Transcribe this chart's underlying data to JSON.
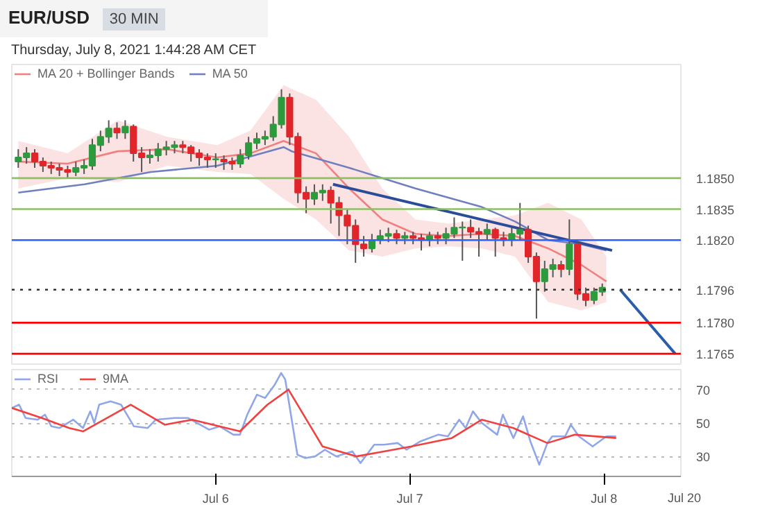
{
  "chart_data": [
    {
      "type": "candlestick",
      "title": "EUR/USD",
      "subtitle": "30 MIN",
      "annotations": [
        "Thursday, July 8, 2021 1:44:28 AM CET"
      ],
      "x": [
        "2021-07-04T23:36",
        "2021-07-05T00:37",
        "2021-07-05T01:38",
        "2021-07-05T02:39",
        "2021-07-05T03:40",
        "2021-07-05T04:41",
        "2021-07-05T05:42",
        "2021-07-05T06:43",
        "2021-07-05T07:44",
        "2021-07-05T08:45",
        "2021-07-05T09:46",
        "2021-07-05T10:47",
        "2021-07-05T11:48",
        "2021-07-05T12:49",
        "2021-07-05T13:50",
        "2021-07-05T14:51",
        "2021-07-05T15:52",
        "2021-07-05T16:53",
        "2021-07-05T17:54",
        "2021-07-05T18:55",
        "2021-07-05T19:56",
        "2021-07-05T20:57",
        "2021-07-05T21:58",
        "2021-07-05T22:59",
        "2021-07-06T00:00",
        "2021-07-06T01:01",
        "2021-07-06T02:02",
        "2021-07-06T03:03",
        "2021-07-06T04:04",
        "2021-07-06T05:05",
        "2021-07-06T06:06",
        "2021-07-06T07:07",
        "2021-07-06T08:08",
        "2021-07-06T09:09",
        "2021-07-06T10:10",
        "2021-07-06T11:11",
        "2021-07-06T12:12",
        "2021-07-06T13:13",
        "2021-07-06T14:14",
        "2021-07-06T15:15",
        "2021-07-06T16:16",
        "2021-07-06T17:17",
        "2021-07-06T18:18",
        "2021-07-06T19:19",
        "2021-07-06T20:20",
        "2021-07-06T21:21",
        "2021-07-06T22:22",
        "2021-07-06T23:23",
        "2021-07-07T00:24",
        "2021-07-07T01:25",
        "2021-07-07T02:26",
        "2021-07-07T03:27",
        "2021-07-07T04:28",
        "2021-07-07T05:29",
        "2021-07-07T06:30",
        "2021-07-07T07:31",
        "2021-07-07T08:32",
        "2021-07-07T09:33",
        "2021-07-07T10:34",
        "2021-07-07T11:35",
        "2021-07-07T12:36",
        "2021-07-07T13:37",
        "2021-07-07T14:38",
        "2021-07-07T15:39",
        "2021-07-07T16:40",
        "2021-07-07T17:41",
        "2021-07-07T18:42",
        "2021-07-07T19:43",
        "2021-07-07T20:44",
        "2021-07-07T21:45",
        "2021-07-07T22:46",
        "2021-07-07T23:47"
      ],
      "ohlc": [
        [
          1.1858,
          1.1864,
          1.1855,
          1.186
        ],
        [
          1.186,
          1.1865,
          1.1857,
          1.1862
        ],
        [
          1.1862,
          1.1864,
          1.1855,
          1.1858
        ],
        [
          1.1858,
          1.186,
          1.1853,
          1.1856
        ],
        [
          1.1856,
          1.1858,
          1.1852,
          1.1855
        ],
        [
          1.1855,
          1.1857,
          1.1851,
          1.1854
        ],
        [
          1.1854,
          1.1856,
          1.185,
          1.1853
        ],
        [
          1.1853,
          1.1858,
          1.1851,
          1.1855
        ],
        [
          1.1855,
          1.1859,
          1.1852,
          1.1856
        ],
        [
          1.1856,
          1.1869,
          1.1854,
          1.1866
        ],
        [
          1.1866,
          1.1873,
          1.1863,
          1.187
        ],
        [
          1.187,
          1.1878,
          1.1867,
          1.1874
        ],
        [
          1.1874,
          1.1877,
          1.1869,
          1.1872
        ],
        [
          1.1872,
          1.1878,
          1.1869,
          1.1875
        ],
        [
          1.1875,
          1.1876,
          1.1858,
          1.1862
        ],
        [
          1.1862,
          1.1865,
          1.1853,
          1.186
        ],
        [
          1.186,
          1.1864,
          1.1857,
          1.1861
        ],
        [
          1.1861,
          1.1867,
          1.1858,
          1.1864
        ],
        [
          1.1864,
          1.1868,
          1.1861,
          1.1865
        ],
        [
          1.1865,
          1.1868,
          1.1862,
          1.1866
        ],
        [
          1.1866,
          1.1868,
          1.1862,
          1.1865
        ],
        [
          1.1865,
          1.1866,
          1.1858,
          1.1862
        ],
        [
          1.1862,
          1.1864,
          1.1856,
          1.186
        ],
        [
          1.186,
          1.1862,
          1.1855,
          1.1859
        ],
        [
          1.1859,
          1.1862,
          1.1855,
          1.1859
        ],
        [
          1.1859,
          1.1861,
          1.1854,
          1.1858
        ],
        [
          1.1858,
          1.186,
          1.1854,
          1.1857
        ],
        [
          1.1857,
          1.1864,
          1.1855,
          1.1861
        ],
        [
          1.1861,
          1.187,
          1.1859,
          1.1867
        ],
        [
          1.1867,
          1.1872,
          1.1864,
          1.1869
        ],
        [
          1.1869,
          1.1873,
          1.1866,
          1.187
        ],
        [
          1.187,
          1.188,
          1.1868,
          1.1876
        ],
        [
          1.1876,
          1.1893,
          1.1874,
          1.1889
        ],
        [
          1.1889,
          1.1891,
          1.1866,
          1.187
        ],
        [
          1.187,
          1.1872,
          1.1838,
          1.1843
        ],
        [
          1.1843,
          1.1846,
          1.1833,
          1.184
        ],
        [
          1.184,
          1.1847,
          1.1837,
          1.1843
        ],
        [
          1.1843,
          1.1847,
          1.1839,
          1.1844
        ],
        [
          1.1844,
          1.1846,
          1.1828,
          1.1838
        ],
        [
          1.1838,
          1.1841,
          1.1822,
          1.1832
        ],
        [
          1.1832,
          1.1835,
          1.1818,
          1.1827
        ],
        [
          1.1827,
          1.183,
          1.1809,
          1.1818
        ],
        [
          1.1818,
          1.1822,
          1.1812,
          1.1816
        ],
        [
          1.1816,
          1.1823,
          1.1814,
          1.182
        ],
        [
          1.182,
          1.1825,
          1.1818,
          1.1822
        ],
        [
          1.1822,
          1.1826,
          1.1819,
          1.1823
        ],
        [
          1.1823,
          1.1825,
          1.1818,
          1.1821
        ],
        [
          1.1821,
          1.1824,
          1.1818,
          1.1822
        ],
        [
          1.1822,
          1.1824,
          1.1818,
          1.1821
        ],
        [
          1.1821,
          1.1823,
          1.1815,
          1.182
        ],
        [
          1.182,
          1.1824,
          1.1817,
          1.1822
        ],
        [
          1.1822,
          1.1824,
          1.1818,
          1.1821
        ],
        [
          1.1821,
          1.1826,
          1.1818,
          1.1823
        ],
        [
          1.1823,
          1.1831,
          1.1821,
          1.1826
        ],
        [
          1.1826,
          1.1829,
          1.181,
          1.1826
        ],
        [
          1.1826,
          1.183,
          1.1821,
          1.1824
        ],
        [
          1.1824,
          1.1826,
          1.1812,
          1.1823
        ],
        [
          1.1823,
          1.1828,
          1.182,
          1.1825
        ],
        [
          1.1825,
          1.1826,
          1.1812,
          1.1821
        ],
        [
          1.1821,
          1.1824,
          1.1817,
          1.182
        ],
        [
          1.182,
          1.1826,
          1.1817,
          1.1823
        ],
        [
          1.1823,
          1.1838,
          1.182,
          1.1825
        ],
        [
          1.1825,
          1.1827,
          1.1809,
          1.1812
        ],
        [
          1.1812,
          1.1814,
          1.1782,
          1.18
        ],
        [
          1.18,
          1.181,
          1.1795,
          1.1806
        ],
        [
          1.1806,
          1.1811,
          1.1802,
          1.1808
        ],
        [
          1.1808,
          1.181,
          1.1802,
          1.1806
        ],
        [
          1.1806,
          1.183,
          1.1803,
          1.1818
        ],
        [
          1.1818,
          1.182,
          1.1791,
          1.1794
        ],
        [
          1.1794,
          1.1797,
          1.1788,
          1.1791
        ],
        [
          1.1791,
          1.1797,
          1.1789,
          1.1795
        ],
        [
          1.1795,
          1.1799,
          1.1793,
          1.1797
        ]
      ],
      "series": [
        {
          "type": "line",
          "name": "MA 20 + Bollinger Bands",
          "color": "#f08080",
          "x": [
            "2021-07-04T23:36",
            "2021-07-05T05:42",
            "2021-07-05T11:54",
            "2021-07-05T18:00",
            "2021-07-06T00:12",
            "2021-07-06T04:18",
            "2021-07-06T08:24",
            "2021-07-06T12:24",
            "2021-07-06T16:30",
            "2021-07-06T20:36",
            "2021-07-07T00:42",
            "2021-07-07T04:48",
            "2021-07-07T08:54",
            "2021-07-07T13:00",
            "2021-07-07T17:06",
            "2021-07-07T21:12",
            "2021-07-08T00:18"
          ],
          "values": [
            1.1858,
            1.1857,
            1.1863,
            1.1864,
            1.186,
            1.1862,
            1.1868,
            1.1862,
            1.1845,
            1.183,
            1.1823,
            1.1822,
            1.1823,
            1.1822,
            1.1816,
            1.1808,
            1.18
          ],
          "upper": [
            1.1868,
            1.1862,
            1.1878,
            1.187,
            1.1866,
            1.1873,
            1.1895,
            1.1888,
            1.187,
            1.1845,
            1.183,
            1.1828,
            1.183,
            1.1832,
            1.1838,
            1.183,
            1.1812
          ],
          "lower": [
            1.1845,
            1.185,
            1.1848,
            1.1856,
            1.1853,
            1.1852,
            1.184,
            1.183,
            1.1815,
            1.1812,
            1.1816,
            1.1817,
            1.1816,
            1.1812,
            1.179,
            1.1786,
            1.179
          ]
        },
        {
          "type": "line",
          "name": "MA 50",
          "color": "#6f7fc0",
          "x": [
            "2021-07-04T23:36",
            "2021-07-05T07:48",
            "2021-07-05T16:00",
            "2021-07-06T00:12",
            "2021-07-06T08:24",
            "2021-07-06T09:24",
            "2021-07-06T16:30",
            "2021-07-07T00:42",
            "2021-07-07T08:54",
            "2021-07-07T13:00",
            "2021-07-07T17:06",
            "2021-07-07T21:12",
            "2021-07-08T00:18"
          ],
          "values": [
            1.1843,
            1.1847,
            1.1853,
            1.1856,
            1.1865,
            1.1863,
            1.1855,
            1.1845,
            1.1836,
            1.1829,
            1.182,
            1.1818,
            1.1815
          ]
        },
        {
          "type": "line",
          "color": "#2b4c9b",
          "x": [
            "2021-07-06T14:30",
            "2021-07-08T01:00"
          ],
          "values": [
            1.1847,
            1.1815
          ]
        },
        {
          "type": "line",
          "color": "#2b5ea8",
          "x": [
            "2021-07-08T02:00",
            "2021-07-08T08:48"
          ],
          "values": [
            1.1796,
            1.1765
          ]
        }
      ],
      "ref_lines": [
        {
          "axis": "y",
          "value": 1.185,
          "color": "#8cc063"
        },
        {
          "axis": "y",
          "value": 1.1835,
          "color": "#8cc063"
        },
        {
          "axis": "y",
          "value": 1.182,
          "color": "#2962ff"
        },
        {
          "axis": "y",
          "value": 1.1796,
          "color": "#333333",
          "line_style": "dotted"
        },
        {
          "axis": "y",
          "value": 1.178,
          "color": "#ff0000"
        },
        {
          "axis": "y",
          "value": 1.1765,
          "color": "#ff0000"
        }
      ],
      "xlim": [
        "2021-07-04T22:48",
        "2021-07-08T09:30"
      ],
      "ylim": [
        1.176,
        1.1905
      ],
      "yticks": [
        {
          "value": 1.185,
          "label": "1.1850"
        },
        1.1835,
        {
          "value": 1.182,
          "label": "1.1820"
        },
        1.1796,
        {
          "value": 1.178,
          "label": "1.1780"
        },
        1.1765
      ],
      "tick_labels": "y",
      "legend": "top left"
    },
    {
      "type": "line",
      "series": [
        {
          "name": "RSI",
          "color": "#8fa6e8",
          "x": [
            "2021-07-04T22:48",
            "2021-07-04T23:42",
            "2021-07-05T00:30",
            "2021-07-05T02:00",
            "2021-07-05T02:54",
            "2021-07-05T03:42",
            "2021-07-05T04:42",
            "2021-07-05T06:24",
            "2021-07-05T07:36",
            "2021-07-05T08:30",
            "2021-07-05T09:00",
            "2021-07-05T09:36",
            "2021-07-05T11:00",
            "2021-07-05T12:18",
            "2021-07-05T13:54",
            "2021-07-05T15:36",
            "2021-07-05T16:36",
            "2021-07-05T18:54",
            "2021-07-05T20:36",
            "2021-07-05T23:12",
            "2021-07-06T00:30",
            "2021-07-06T02:12",
            "2021-07-06T03:00",
            "2021-07-06T03:54",
            "2021-07-06T05:06",
            "2021-07-06T06:06",
            "2021-07-06T07:18",
            "2021-07-06T08:06",
            "2021-07-06T08:36",
            "2021-07-06T10:06",
            "2021-07-06T11:06",
            "2021-07-06T12:18",
            "2021-07-06T13:30",
            "2021-07-06T14:54",
            "2021-07-06T16:54",
            "2021-07-06T17:54",
            "2021-07-06T19:36",
            "2021-07-06T20:48",
            "2021-07-06T22:30",
            "2021-07-06T23:36",
            "2021-07-07T01:18",
            "2021-07-07T03:30",
            "2021-07-07T04:42",
            "2021-07-07T06:06",
            "2021-07-07T06:54",
            "2021-07-07T07:48",
            "2021-07-07T08:54",
            "2021-07-07T10:48",
            "2021-07-07T11:30",
            "2021-07-07T12:48",
            "2021-07-07T14:00",
            "2021-07-07T14:54",
            "2021-07-07T16:00",
            "2021-07-07T17:00",
            "2021-07-07T17:36",
            "2021-07-07T19:12",
            "2021-07-07T19:54",
            "2021-07-07T20:54",
            "2021-07-07T22:36",
            "2021-07-08T00:18",
            "2021-07-08T01:30"
          ],
          "values": [
            59,
            61,
            53,
            52,
            55,
            48,
            47,
            52,
            47,
            57,
            50,
            61,
            63,
            61,
            48,
            47,
            52,
            53,
            53,
            46,
            48,
            43,
            43,
            55,
            67,
            65,
            73,
            80,
            76,
            31,
            29,
            30,
            34,
            30,
            33,
            26,
            37,
            37,
            38,
            34,
            39,
            43,
            42,
            52,
            47,
            57,
            50,
            43,
            55,
            41,
            54,
            39,
            25,
            38,
            42,
            42,
            49,
            42,
            36,
            42,
            42
          ]
        },
        {
          "name": "9MA",
          "color": "#f04040",
          "x": [
            "2021-07-04T22:48",
            "2021-07-05T02:30",
            "2021-07-05T05:54",
            "2021-07-05T07:36",
            "2021-07-05T13:30",
            "2021-07-05T17:42",
            "2021-07-05T21:06",
            "2021-07-06T03:00",
            "2021-07-06T06:24",
            "2021-07-06T09:00",
            "2021-07-06T13:12",
            "2021-07-06T17:24",
            "2021-07-06T20:48",
            "2021-07-07T00:12",
            "2021-07-07T05:12",
            "2021-07-07T08:54",
            "2021-07-07T12:48",
            "2021-07-07T17:00",
            "2021-07-07T20:24",
            "2021-07-08T01:30"
          ],
          "values": [
            59,
            53,
            47,
            45,
            61,
            49,
            52,
            45,
            61,
            70,
            36,
            30,
            33,
            36,
            41,
            52,
            47,
            38,
            43,
            41
          ]
        }
      ],
      "xlim": [
        "2021-07-04T22:48",
        "2021-07-08T09:30"
      ],
      "ylim": [
        18,
        82
      ],
      "xticks": [
        {
          "value": "2021-07-06",
          "label": "Jul 6"
        },
        {
          "value": "2021-07-07",
          "label": "Jul 7"
        },
        {
          "value": "2021-07-08",
          "label": "Jul 8"
        }
      ],
      "annotations": [
        "Jul 20"
      ],
      "yticks": [
        30,
        50,
        70
      ],
      "grid": "y",
      "legend": "top left"
    }
  ]
}
